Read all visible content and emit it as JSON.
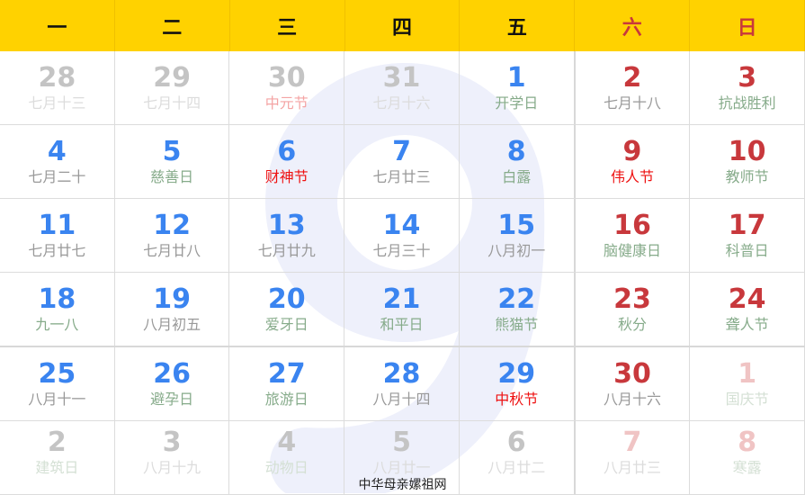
{
  "watermark": "9",
  "weekdays": [
    "一",
    "二",
    "三",
    "四",
    "五",
    "六",
    "日"
  ],
  "weeks": [
    [
      {
        "n": "28",
        "l": "七月十三",
        "nc": "gray",
        "lc": "faint"
      },
      {
        "n": "29",
        "l": "七月十四",
        "nc": "gray",
        "lc": "faint"
      },
      {
        "n": "30",
        "l": "中元节",
        "nc": "gray",
        "lc": "pinkfest"
      },
      {
        "n": "31",
        "l": "七月十六",
        "nc": "gray",
        "lc": "faint"
      },
      {
        "n": "1",
        "l": "开学日",
        "nc": "blue",
        "lc": "green"
      },
      {
        "n": "2",
        "l": "七月十八",
        "nc": "red",
        "lc": "gray"
      },
      {
        "n": "3",
        "l": "抗战胜利",
        "nc": "red",
        "lc": "green"
      }
    ],
    [
      {
        "n": "4",
        "l": "七月二十",
        "nc": "blue",
        "lc": "gray"
      },
      {
        "n": "5",
        "l": "慈善日",
        "nc": "blue",
        "lc": "green"
      },
      {
        "n": "6",
        "l": "财神节",
        "nc": "blue",
        "lc": "fest"
      },
      {
        "n": "7",
        "l": "七月廿三",
        "nc": "blue",
        "lc": "gray"
      },
      {
        "n": "8",
        "l": "白露",
        "nc": "blue",
        "lc": "green"
      },
      {
        "n": "9",
        "l": "伟人节",
        "nc": "red",
        "lc": "fest"
      },
      {
        "n": "10",
        "l": "教师节",
        "nc": "red",
        "lc": "green"
      }
    ],
    [
      {
        "n": "11",
        "l": "七月廿七",
        "nc": "blue",
        "lc": "gray"
      },
      {
        "n": "12",
        "l": "七月廿八",
        "nc": "blue",
        "lc": "gray"
      },
      {
        "n": "13",
        "l": "七月廿九",
        "nc": "blue",
        "lc": "gray"
      },
      {
        "n": "14",
        "l": "七月三十",
        "nc": "blue",
        "lc": "gray"
      },
      {
        "n": "15",
        "l": "八月初一",
        "nc": "blue",
        "lc": "gray"
      },
      {
        "n": "16",
        "l": "脑健康日",
        "nc": "red",
        "lc": "green"
      },
      {
        "n": "17",
        "l": "科普日",
        "nc": "red",
        "lc": "green"
      }
    ],
    [
      {
        "n": "18",
        "l": "九一八",
        "nc": "blue",
        "lc": "green"
      },
      {
        "n": "19",
        "l": "八月初五",
        "nc": "blue",
        "lc": "gray"
      },
      {
        "n": "20",
        "l": "爱牙日",
        "nc": "blue",
        "lc": "green"
      },
      {
        "n": "21",
        "l": "和平日",
        "nc": "blue",
        "lc": "green"
      },
      {
        "n": "22",
        "l": "熊猫节",
        "nc": "blue",
        "lc": "green"
      },
      {
        "n": "23",
        "l": "秋分",
        "nc": "red",
        "lc": "green"
      },
      {
        "n": "24",
        "l": "聋人节",
        "nc": "red",
        "lc": "green"
      }
    ],
    [
      {
        "n": "25",
        "l": "八月十一",
        "nc": "blue",
        "lc": "gray"
      },
      {
        "n": "26",
        "l": "避孕日",
        "nc": "blue",
        "lc": "green"
      },
      {
        "n": "27",
        "l": "旅游日",
        "nc": "blue",
        "lc": "green"
      },
      {
        "n": "28",
        "l": "八月十四",
        "nc": "blue",
        "lc": "gray"
      },
      {
        "n": "29",
        "l": "中秋节",
        "nc": "blue",
        "lc": "fest"
      },
      {
        "n": "30",
        "l": "八月十六",
        "nc": "red",
        "lc": "gray"
      },
      {
        "n": "1",
        "l": "国庆节",
        "nc": "pink",
        "lc": "faintgreen"
      }
    ],
    [
      {
        "n": "2",
        "l": "建筑日",
        "nc": "gray",
        "lc": "faintgreen"
      },
      {
        "n": "3",
        "l": "八月十九",
        "nc": "gray",
        "lc": "faint"
      },
      {
        "n": "4",
        "l": "动物日",
        "nc": "gray",
        "lc": "faintgreen"
      },
      {
        "n": "5",
        "l": "八月廿一",
        "nc": "gray",
        "lc": "faint"
      },
      {
        "n": "6",
        "l": "八月廿二",
        "nc": "gray",
        "lc": "faint"
      },
      {
        "n": "7",
        "l": "八月廿三",
        "nc": "pink",
        "lc": "faint"
      },
      {
        "n": "8",
        "l": "寒露",
        "nc": "pink",
        "lc": "faintgreen"
      }
    ]
  ],
  "footer": "中华母亲嫘祖网"
}
